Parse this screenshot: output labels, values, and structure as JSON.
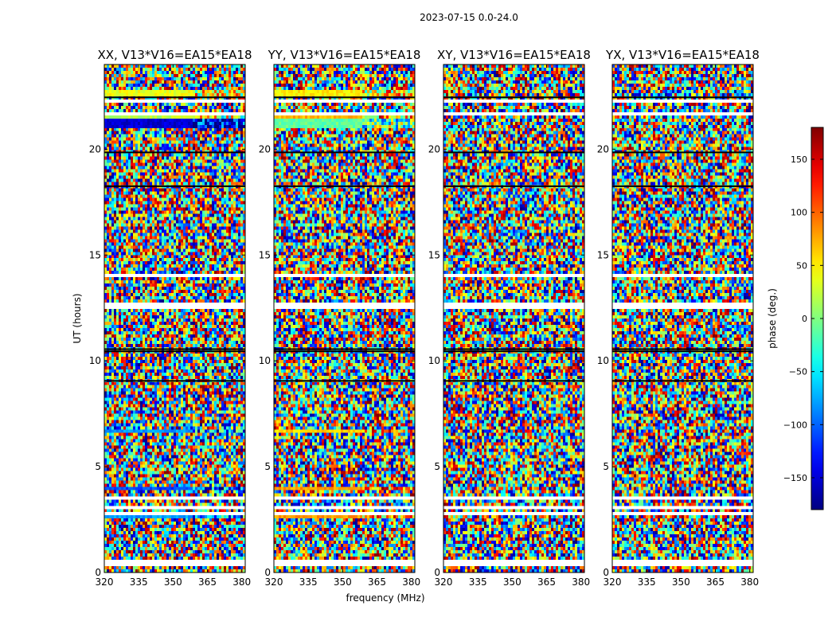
{
  "figure_title": "2023-07-15 0.0-24.0",
  "chart_data": {
    "type": "heatmap",
    "panels": [
      {
        "title": "XX, V13*V16=EA15*EA18",
        "polarization": "XX"
      },
      {
        "title": "YY, V13*V16=EA15*EA18",
        "polarization": "YY"
      },
      {
        "title": "XY, V13*V16=EA15*EA18",
        "polarization": "XY"
      },
      {
        "title": "YX, V13*V16=EA15*EA18",
        "polarization": "YX"
      }
    ],
    "xlabel": "frequency (MHz)",
    "ylabel": "UT (hours)",
    "xlim": [
      320,
      381.5
    ],
    "ylim": [
      0,
      24
    ],
    "xticks": [
      320,
      335,
      350,
      365,
      380
    ],
    "yticks": [
      0,
      5,
      10,
      15,
      20
    ],
    "colorbar": {
      "label": "phase (deg.)",
      "range": [
        -180,
        180
      ],
      "ticks": [
        -150,
        -100,
        -50,
        0,
        50,
        100,
        150
      ],
      "tick_labels": [
        "−150",
        "−100",
        "−50",
        "0",
        "50",
        "100",
        "150"
      ],
      "colormap": "jet"
    },
    "flagged_gaps_ut": [
      [
        0.3,
        0.55
      ],
      [
        2.75,
        2.85
      ],
      [
        3.05,
        3.15
      ],
      [
        3.4,
        3.65
      ],
      [
        12.5,
        12.75
      ],
      [
        13.95,
        14.1
      ],
      [
        14.2,
        14.3
      ],
      [
        21.6,
        21.8
      ],
      [
        22.25,
        22.35
      ]
    ],
    "dark_lines_ut": [
      10.45,
      10.55,
      9.05,
      19.85,
      22.45,
      18.25
    ],
    "coherent_bands_ut": {
      "XX": [
        [
          22.5,
          22.8,
          40
        ],
        [
          21.45,
          21.6,
          20
        ],
        [
          21.0,
          21.4,
          -150
        ],
        [
          6.55,
          6.8,
          -80
        ],
        [
          3.85,
          4.0,
          -110
        ],
        [
          2.55,
          2.75,
          -80
        ]
      ],
      "YY": [
        [
          22.5,
          22.8,
          50
        ],
        [
          21.45,
          21.6,
          70
        ],
        [
          21.0,
          21.4,
          -10
        ],
        [
          6.55,
          6.8,
          60
        ],
        [
          2.55,
          2.75,
          80
        ],
        [
          3.85,
          4.0,
          80
        ]
      ],
      "XY": [],
      "YX": []
    }
  }
}
